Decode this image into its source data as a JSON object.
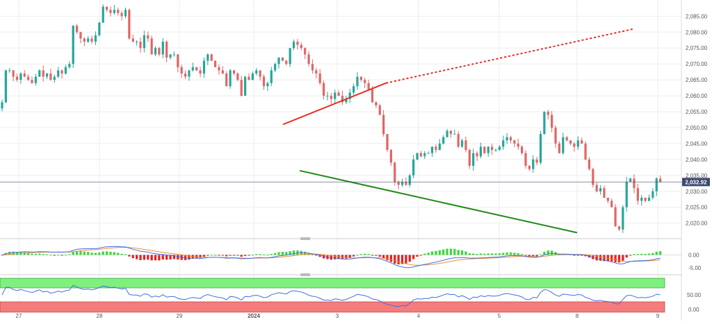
{
  "chart_data": {
    "type": "candlestick",
    "instrument_price": "2,032.92",
    "price_axis": {
      "ticks": [
        "2,085.00",
        "2,080.00",
        "2,075.00",
        "2,070.00",
        "2,065.00",
        "2,060.00",
        "2,055.00",
        "2,050.00",
        "2,045.00",
        "2,040.00",
        "2,035.00",
        "2,030.00",
        "2,025.00",
        "2,020.00"
      ],
      "range": [
        2016,
        2089
      ]
    },
    "last_price": 2032.92,
    "date_axis": {
      "labels": [
        "27",
        "28",
        "29",
        "2024",
        "3",
        "4",
        "5",
        "8",
        "9"
      ]
    },
    "candles_close": [
      2058,
      2068,
      2068,
      2066,
      2065,
      2067,
      2066,
      2065,
      2064,
      2066,
      2068,
      2066,
      2067,
      2065,
      2066,
      2068,
      2067,
      2069,
      2070,
      2082,
      2080,
      2078,
      2077,
      2078,
      2077,
      2079,
      2083,
      2088,
      2087,
      2086,
      2087,
      2086,
      2085,
      2087,
      2078,
      2077,
      2077,
      2075,
      2079,
      2078,
      2073,
      2075,
      2073,
      2077,
      2072,
      2073,
      2073,
      2069,
      2067,
      2066,
      2068,
      2069,
      2068,
      2067,
      2071,
      2073,
      2071,
      2069,
      2068,
      2067,
      2063,
      2068,
      2067,
      2065,
      2060,
      2066,
      2065,
      2067,
      2068,
      2066,
      2063,
      2064,
      2068,
      2070,
      2072,
      2071,
      2070,
      2075,
      2077,
      2076,
      2075,
      2073,
      2070,
      2068,
      2067,
      2064,
      2060,
      2060,
      2059,
      2061,
      2060,
      2058,
      2059,
      2061,
      2063,
      2066,
      2065,
      2064,
      2062,
      2058,
      2057,
      2054,
      2048,
      2043,
      2039,
      2033,
      2032,
      2033,
      2032,
      2035,
      2040,
      2042,
      2041,
      2042,
      2042,
      2044,
      2043,
      2045,
      2047,
      2049,
      2048,
      2048,
      2044,
      2046,
      2043,
      2038,
      2042,
      2041,
      2044,
      2042,
      2044,
      2043,
      2043,
      2044,
      2046,
      2047,
      2046,
      2045,
      2044,
      2042,
      2038,
      2037,
      2040,
      2039,
      2048,
      2055,
      2054,
      2050,
      2045,
      2042,
      2047,
      2046,
      2045,
      2044,
      2046,
      2045,
      2040,
      2037,
      2032,
      2030,
      2031,
      2028,
      2027,
      2025,
      2019,
      2018,
      2025,
      2033,
      2034,
      2031,
      2027,
      2028,
      2027,
      2028,
      2030,
      2034,
      2033
    ],
    "lines": [
      {
        "name": "resistance",
        "color": "#e8281e",
        "style": "solid",
        "points": [
          [
            2,
            4.35,
            2051
          ],
          [
            2,
            5.6,
            2064
          ]
        ]
      },
      {
        "name": "resistance-extension",
        "color": "#e8281e",
        "style": "dotted",
        "points": [
          [
            2,
            5.6,
            2064
          ],
          [
            2,
            9.3,
            2081
          ]
        ]
      },
      {
        "name": "support",
        "color": "#1e8a14",
        "style": "solid",
        "points": [
          [
            2,
            4.55,
            2036.5
          ],
          [
            2,
            8.5,
            2017
          ]
        ]
      }
    ],
    "macd_axis": {
      "ticks": [
        "0.00",
        "-5.00"
      ]
    },
    "rsi_axis": {
      "ticks": [
        "50.00",
        "0.00"
      ],
      "overbought": 70,
      "oversold": 30
    },
    "colors": {
      "bull": "#26a69a",
      "bear": "#e06666",
      "price_line": "#3c4a6e",
      "macd_line": "#3f6fe0",
      "signal_line": "#f28b35",
      "hist_pos": "#3ed63e",
      "hist_neg": "#e81e1e",
      "rsi_line": "#3f6fe0",
      "rsi_ob": "#7ef07e",
      "rsi_os": "#f57c7c"
    }
  }
}
